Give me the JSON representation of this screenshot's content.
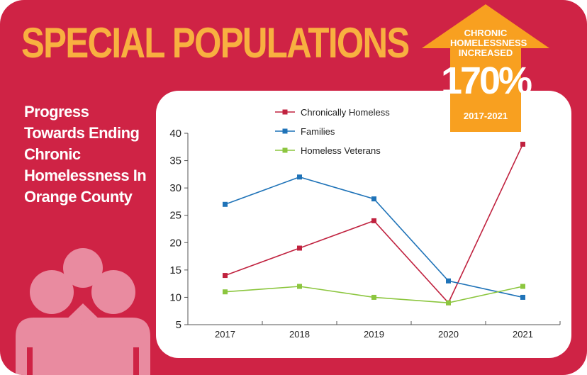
{
  "header": {
    "title": "SPECIAL POPULATIONS"
  },
  "sidebar": {
    "subtitle": "Progress Towards Ending Chronic Homelessness In Orange County"
  },
  "badge": {
    "line1": "CHRONIC HOMELESSNESS INCREASED",
    "value": "170%",
    "period": "2017-2021"
  },
  "colors": {
    "background": "#cf2345",
    "title": "#f8b040",
    "badge": "#f8a020",
    "people_icon": "#e98ba0"
  },
  "icons": [
    "people-group-icon",
    "up-arrow-icon"
  ],
  "chart_data": {
    "type": "line",
    "categories": [
      "2017",
      "2018",
      "2019",
      "2020",
      "2021"
    ],
    "ylim": [
      5,
      40
    ],
    "yticks": [
      5,
      10,
      15,
      20,
      25,
      30,
      35,
      40
    ],
    "legend_position": "top",
    "grid": false,
    "series": [
      {
        "name": "Chronically Homeless",
        "color": "#c0223f",
        "values": [
          14,
          19,
          24,
          9,
          38
        ]
      },
      {
        "name": "Families",
        "color": "#1f73b8",
        "values": [
          27,
          32,
          28,
          13,
          10
        ]
      },
      {
        "name": "Homeless Veterans",
        "color": "#8cc63f",
        "values": [
          11,
          12,
          10,
          9,
          12
        ]
      }
    ]
  }
}
